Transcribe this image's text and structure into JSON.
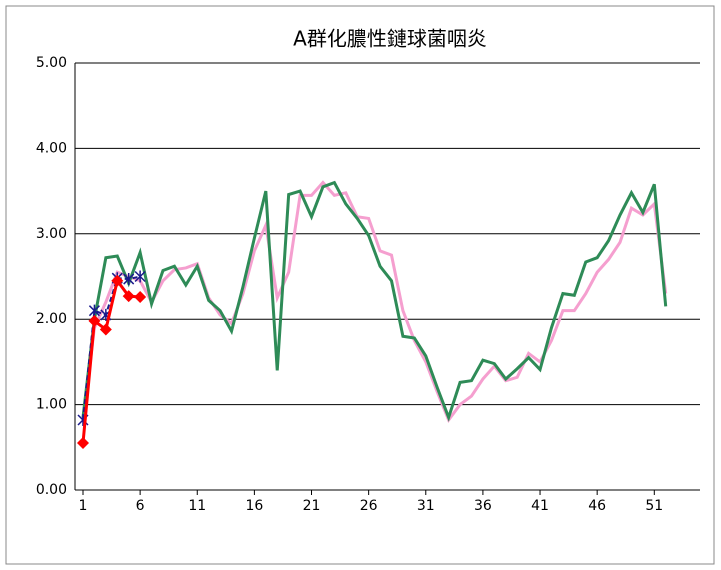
{
  "chart_data": {
    "type": "line",
    "title": "A群化膿性鏈球菌咽炎",
    "xlim": [
      0.3,
      55
    ],
    "xticks": [
      1,
      6,
      11,
      16,
      21,
      26,
      31,
      36,
      41,
      46,
      51
    ],
    "ylim": [
      0,
      5
    ],
    "yticks": [
      {
        "value": 0,
        "label": "0.00"
      },
      {
        "value": 1,
        "label": "1.00"
      },
      {
        "value": 2,
        "label": "2.00"
      },
      {
        "value": 3,
        "label": "3.00"
      },
      {
        "value": 4,
        "label": "4.00"
      },
      {
        "value": 5,
        "label": "5.00"
      }
    ],
    "grid": true,
    "series": [
      {
        "color": "#f59fcf",
        "marker": "none",
        "dash": false,
        "x": [
          1,
          2,
          3,
          4,
          5,
          6,
          7,
          8,
          9,
          10,
          11,
          12,
          13,
          14,
          15,
          16,
          17,
          18,
          19,
          20,
          21,
          22,
          23,
          24,
          25,
          26,
          27,
          28,
          29,
          30,
          31,
          32,
          33,
          34,
          35,
          36,
          37,
          38,
          39,
          40,
          41,
          42,
          43,
          44,
          45,
          46,
          47,
          48,
          49,
          50,
          51,
          52
        ],
        "values": [
          0.8,
          1.9,
          2.2,
          2.55,
          2.5,
          2.45,
          2.2,
          2.45,
          2.58,
          2.6,
          2.65,
          2.25,
          2.05,
          1.95,
          2.3,
          2.8,
          3.1,
          2.25,
          2.55,
          3.45,
          3.45,
          3.6,
          3.45,
          3.48,
          3.2,
          3.18,
          2.8,
          2.75,
          2.1,
          1.75,
          1.5,
          1.15,
          0.82,
          1.0,
          1.1,
          1.3,
          1.45,
          1.28,
          1.32,
          1.6,
          1.5,
          1.75,
          2.1,
          2.1,
          2.3,
          2.55,
          2.7,
          2.9,
          3.3,
          3.22,
          3.35,
          2.3
        ]
      },
      {
        "color": "#2e8b57",
        "marker": "none",
        "dash": false,
        "x": [
          1,
          2,
          3,
          4,
          5,
          6,
          7,
          8,
          9,
          10,
          11,
          12,
          13,
          14,
          15,
          16,
          17,
          18,
          19,
          20,
          21,
          22,
          23,
          24,
          25,
          26,
          27,
          28,
          29,
          30,
          31,
          32,
          33,
          34,
          35,
          36,
          37,
          38,
          39,
          40,
          41,
          42,
          43,
          44,
          45,
          46,
          47,
          48,
          49,
          50,
          51,
          52
        ],
        "values": [
          0.85,
          2.0,
          2.72,
          2.74,
          2.42,
          2.78,
          2.18,
          2.57,
          2.62,
          2.4,
          2.62,
          2.22,
          2.1,
          1.86,
          2.38,
          2.95,
          3.5,
          1.4,
          3.46,
          3.5,
          3.2,
          3.55,
          3.6,
          3.35,
          3.18,
          2.98,
          2.62,
          2.45,
          1.8,
          1.78,
          1.57,
          1.2,
          0.85,
          1.26,
          1.28,
          1.52,
          1.48,
          1.3,
          1.42,
          1.55,
          1.41,
          1.9,
          2.3,
          2.28,
          2.67,
          2.72,
          2.92,
          3.22,
          3.48,
          3.25,
          3.58,
          2.15
        ]
      },
      {
        "color": "#1a1a8c",
        "marker": "asterisk",
        "dash": true,
        "x": [
          1,
          2,
          3,
          4,
          5,
          6
        ],
        "values": [
          0.82,
          2.1,
          2.05,
          2.48,
          2.47,
          2.5
        ]
      },
      {
        "color": "#ff0000",
        "marker": "diamond",
        "dash": false,
        "x": [
          1,
          2,
          3,
          4,
          5,
          6
        ],
        "values": [
          0.55,
          1.98,
          1.88,
          2.45,
          2.27,
          2.26
        ]
      }
    ]
  }
}
